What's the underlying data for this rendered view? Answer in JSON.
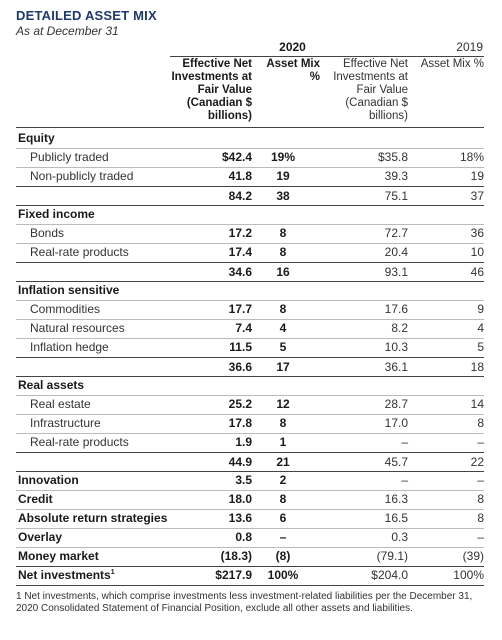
{
  "title": "DETAILED ASSET MIX",
  "subtitle": "As at December 31",
  "years": {
    "current": "2020",
    "prior": "2019"
  },
  "columns": {
    "c1": "Effective Net Investments at Fair Value (Canadian $ billions)",
    "c2": "Asset Mix %",
    "c3": "Effective Net Investments at Fair Value (Canadian $ billions)",
    "c4": "Asset Mix %"
  },
  "sections": {
    "equity": "Equity",
    "fixed": "Fixed income",
    "infl": "Inflation sensitive",
    "real": "Real assets"
  },
  "rows": {
    "pub": {
      "label": "Publicly traded",
      "v1": "$42.4",
      "v2": "19%",
      "v3": "$35.8",
      "v4": "18%"
    },
    "nonpub": {
      "label": "Non-publicly traded",
      "v1": "41.8",
      "v2": "19",
      "v3": "39.3",
      "v4": "19"
    },
    "eqtot": {
      "label": "",
      "v1": "84.2",
      "v2": "38",
      "v3": "75.1",
      "v4": "37"
    },
    "bonds": {
      "label": "Bonds",
      "v1": "17.2",
      "v2": "8",
      "v3": "72.7",
      "v4": "36"
    },
    "rrp1": {
      "label": "Real-rate products",
      "v1": "17.4",
      "v2": "8",
      "v3": "20.4",
      "v4": "10"
    },
    "fitot": {
      "label": "",
      "v1": "34.6",
      "v2": "16",
      "v3": "93.1",
      "v4": "46"
    },
    "comm": {
      "label": "Commodities",
      "v1": "17.7",
      "v2": "8",
      "v3": "17.6",
      "v4": "9"
    },
    "natres": {
      "label": "Natural resources",
      "v1": "7.4",
      "v2": "4",
      "v3": "8.2",
      "v4": "4"
    },
    "hedge": {
      "label": "Inflation hedge",
      "v1": "11.5",
      "v2": "5",
      "v3": "10.3",
      "v4": "5"
    },
    "instot": {
      "label": "",
      "v1": "36.6",
      "v2": "17",
      "v3": "36.1",
      "v4": "18"
    },
    "realest": {
      "label": "Real estate",
      "v1": "25.2",
      "v2": "12",
      "v3": "28.7",
      "v4": "14"
    },
    "infra": {
      "label": "Infrastructure",
      "v1": "17.8",
      "v2": "8",
      "v3": "17.0",
      "v4": "8"
    },
    "rrp2": {
      "label": "Real-rate products",
      "v1": "1.9",
      "v2": "1",
      "v3": "–",
      "v4": "–"
    },
    "ratot": {
      "label": "",
      "v1": "44.9",
      "v2": "21",
      "v3": "45.7",
      "v4": "22"
    },
    "innov": {
      "label": "Innovation",
      "v1": "3.5",
      "v2": "2",
      "v3": "–",
      "v4": "–"
    },
    "credit": {
      "label": "Credit",
      "v1": "18.0",
      "v2": "8",
      "v3": "16.3",
      "v4": "8"
    },
    "abs": {
      "label": "Absolute return strategies",
      "v1": "13.6",
      "v2": "6",
      "v3": "16.5",
      "v4": "8"
    },
    "overlay": {
      "label": "Overlay",
      "v1": "0.8",
      "v2": "–",
      "v3": "0.3",
      "v4": "–"
    },
    "mm": {
      "label": "Money market",
      "v1": "(18.3)",
      "v2": "(8)",
      "v3": "(79.1)",
      "v4": "(39)"
    },
    "net": {
      "label": "Net investments",
      "v1": "$217.9",
      "v2": "100%",
      "v3": "$204.0",
      "v4": "100%"
    }
  },
  "footnote_marker": "1",
  "footnote": "1  Net investments, which comprise investments less investment-related liabilities per the December 31, 2020 Consolidated Statement of Financial Position, exclude all other assets and liabilities."
}
